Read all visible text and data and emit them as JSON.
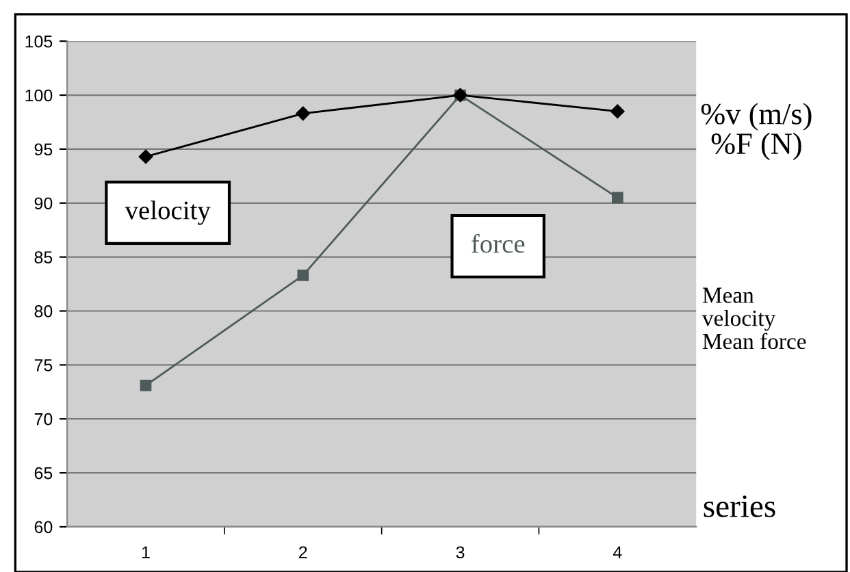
{
  "chart_data": {
    "type": "line",
    "categories": [
      "1",
      "2",
      "3",
      "4"
    ],
    "series": [
      {
        "name": "velocity",
        "color": "#000000",
        "marker": "diamond",
        "values": [
          94.3,
          98.3,
          100,
          98.5
        ]
      },
      {
        "name": "force",
        "color": "#4f5a5a",
        "marker": "square",
        "values": [
          73.1,
          83.3,
          100,
          90.5
        ]
      }
    ],
    "xlabel": "series",
    "ylabel": "%v (m/s)\n%F (N)",
    "annotations": [
      "Mean\nvelocity\nMean force"
    ],
    "ylim": [
      60,
      105
    ],
    "yticks": [
      60,
      65,
      70,
      75,
      80,
      85,
      90,
      95,
      100,
      105
    ],
    "grid": "y",
    "legend": false,
    "line_style": "solid"
  }
}
